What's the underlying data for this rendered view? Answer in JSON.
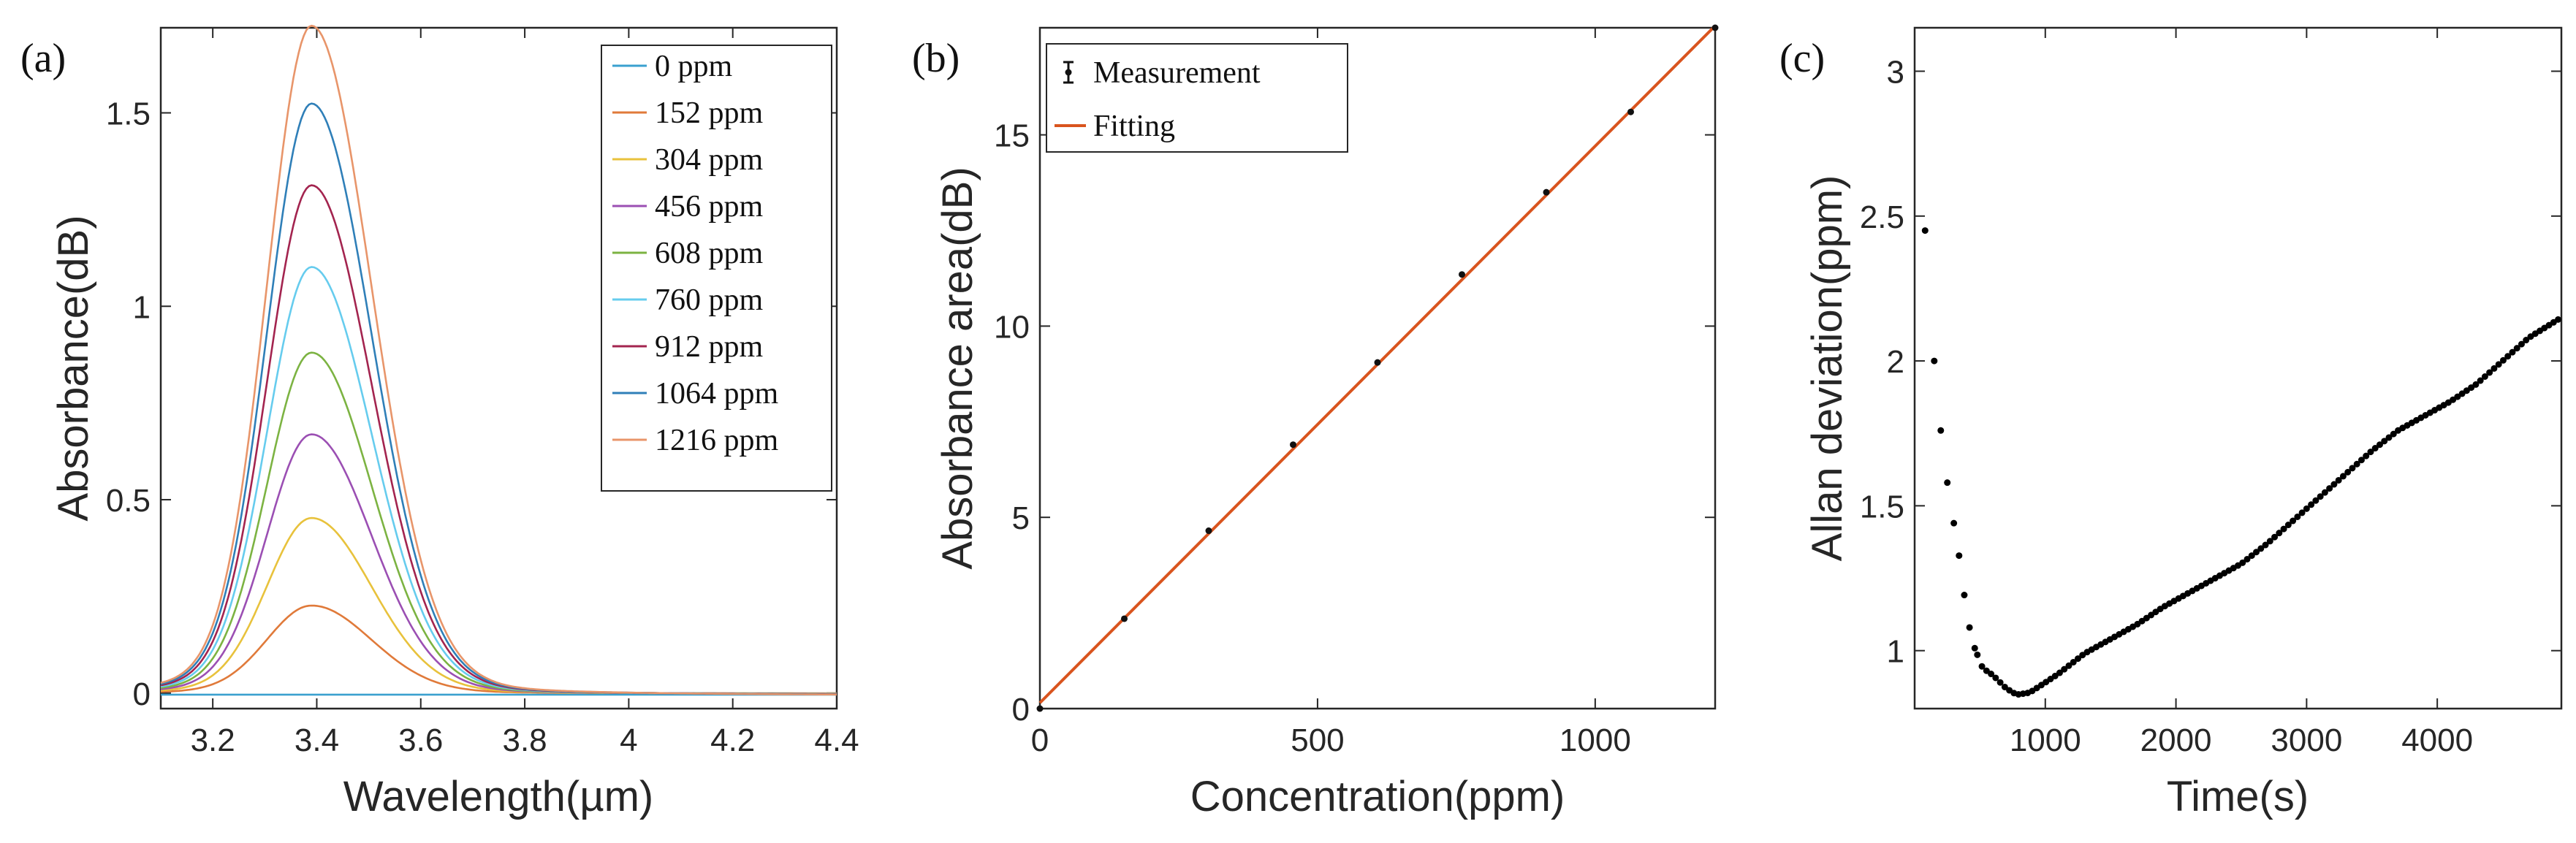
{
  "panels": {
    "a": "(a)",
    "b": "(b)",
    "c": "(c)"
  },
  "chart_data": [
    {
      "type": "line",
      "panel": "(a)",
      "xlabel": "Wavelength(µm)",
      "ylabel": "Absorbance(dB)",
      "xlim": [
        3.1,
        4.4
      ],
      "ylim": [
        -0.04,
        1.72
      ],
      "xticks": [
        "3.2",
        "3.4",
        "3.6",
        "3.8",
        "4",
        "4.2",
        "4.4"
      ],
      "xtick_values": [
        3.2,
        3.4,
        3.6,
        3.8,
        4.0,
        4.2,
        4.4
      ],
      "yticks": [
        "0",
        "0.5",
        "1",
        "1.5"
      ],
      "ytick_values": [
        0,
        0.5,
        1,
        1.5
      ],
      "peak_center_um": 3.39,
      "legend_position": "top-right",
      "series": [
        {
          "name": "0 ppm",
          "peak": 0.0,
          "color": "#3aa0cf"
        },
        {
          "name": "152 ppm",
          "peak": 0.225,
          "color": "#e07a3a"
        },
        {
          "name": "304 ppm",
          "peak": 0.45,
          "color": "#e8c23c"
        },
        {
          "name": "456 ppm",
          "peak": 0.665,
          "color": "#9b4fb3"
        },
        {
          "name": "608 ppm",
          "peak": 0.875,
          "color": "#7cb342"
        },
        {
          "name": "760 ppm",
          "peak": 1.095,
          "color": "#66ccee"
        },
        {
          "name": "912 ppm",
          "peak": 1.305,
          "color": "#a3244f"
        },
        {
          "name": "1064 ppm",
          "peak": 1.515,
          "color": "#2f7fb8"
        },
        {
          "name": "1216 ppm",
          "peak": 1.715,
          "color": "#e8956a"
        }
      ]
    },
    {
      "type": "scatter",
      "panel": "(b)",
      "xlabel": "Concentration(ppm)",
      "ylabel": "Absorbance area(dB)",
      "xlim": [
        0,
        1216
      ],
      "ylim": [
        0,
        17.8
      ],
      "xticks": [
        "0",
        "500",
        "1000"
      ],
      "xtick_values": [
        0,
        500,
        1000
      ],
      "yticks": [
        "0",
        "5",
        "10",
        "15"
      ],
      "ytick_values": [
        0,
        5,
        10,
        15
      ],
      "legend_position": "top-left",
      "measurement": {
        "name": "Measurement",
        "x": [
          0,
          152,
          304,
          456,
          608,
          760,
          912,
          1064,
          1216
        ],
        "y": [
          0.0,
          2.35,
          4.65,
          6.9,
          9.05,
          11.35,
          13.5,
          15.6,
          17.8
        ],
        "color": "#111111"
      },
      "fit": {
        "name": "Fitting",
        "x": [
          0,
          1216
        ],
        "y": [
          0.15,
          17.85
        ],
        "color": "#d9541e"
      }
    },
    {
      "type": "scatter",
      "panel": "(c)",
      "xlabel": "Time(s)",
      "ylabel": "Allan deviation(ppm)",
      "xlim": [
        0,
        4950
      ],
      "ylim": [
        0.8,
        3.15
      ],
      "xticks": [
        "1000",
        "2000",
        "3000",
        "4000"
      ],
      "xtick_values": [
        1000,
        2000,
        3000,
        4000
      ],
      "yticks": [
        "1",
        "1.5",
        "2",
        "2.5",
        "3"
      ],
      "ytick_values": [
        1,
        1.5,
        2,
        2.5,
        3
      ],
      "curve_points": [
        [
          80,
          2.45
        ],
        [
          150,
          2.0
        ],
        [
          200,
          1.76
        ],
        [
          250,
          1.58
        ],
        [
          300,
          1.44
        ],
        [
          350,
          1.3
        ],
        [
          400,
          1.12
        ],
        [
          450,
          1.02
        ],
        [
          520,
          0.94
        ],
        [
          600,
          0.915
        ],
        [
          700,
          0.87
        ],
        [
          780,
          0.848
        ],
        [
          880,
          0.855
        ],
        [
          1000,
          0.89
        ],
        [
          1100,
          0.92
        ],
        [
          1300,
          0.99
        ],
        [
          1500,
          1.04
        ],
        [
          1700,
          1.09
        ],
        [
          1900,
          1.15
        ],
        [
          2100,
          1.2
        ],
        [
          2300,
          1.25
        ],
        [
          2500,
          1.3
        ],
        [
          2700,
          1.37
        ],
        [
          2900,
          1.45
        ],
        [
          3100,
          1.53
        ],
        [
          3300,
          1.61
        ],
        [
          3500,
          1.69
        ],
        [
          3700,
          1.76
        ],
        [
          3900,
          1.81
        ],
        [
          4100,
          1.86
        ],
        [
          4300,
          1.92
        ],
        [
          4500,
          2.0
        ],
        [
          4700,
          2.08
        ],
        [
          4950,
          2.15
        ]
      ],
      "color": "#000000"
    }
  ]
}
